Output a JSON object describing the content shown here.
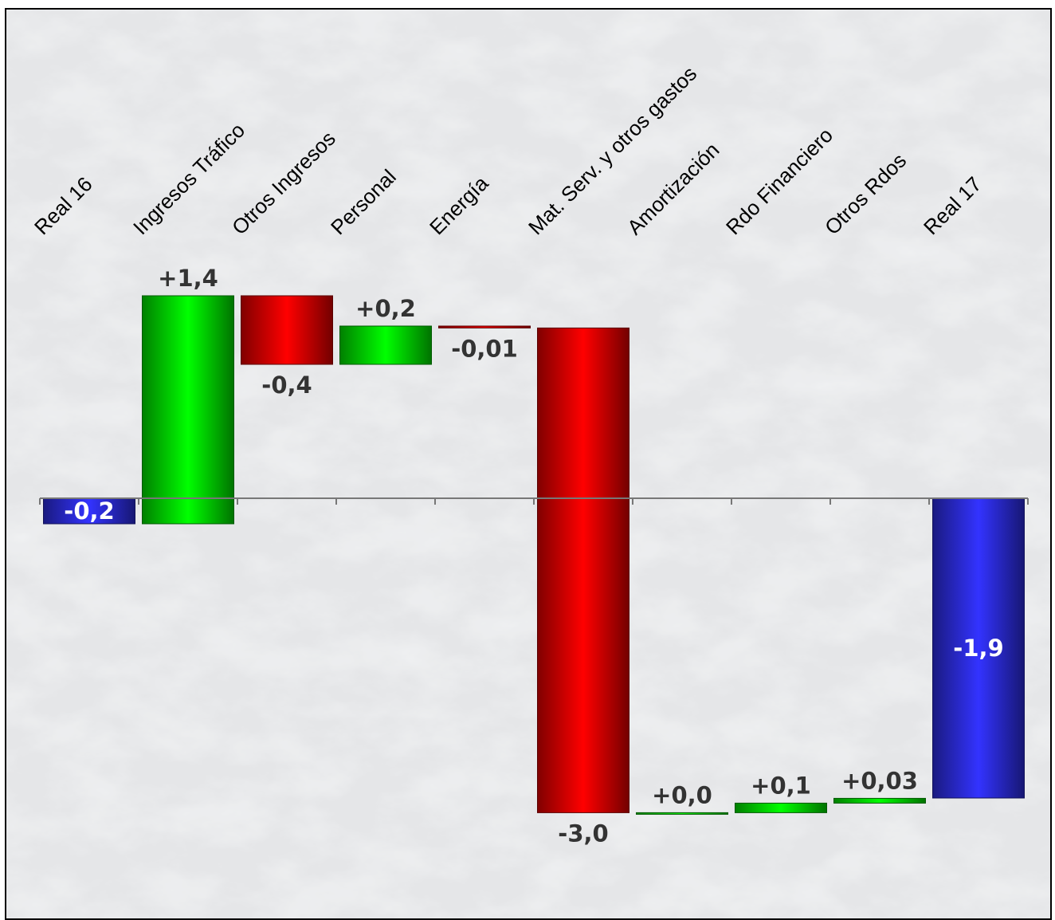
{
  "chart_data": {
    "type": "waterfall",
    "categories": [
      "Real 16",
      "Ingresos Tráfico",
      "Otros Ingresos",
      "Personal",
      "Energía",
      "Mat. Serv. y otros gastos",
      "Amortización",
      "Rdo Financiero",
      "Otros Rdos",
      "Real 17"
    ],
    "values": [
      -0.16,
      1.43,
      -0.43,
      0.24,
      -0.012,
      -3.04,
      0.0,
      0.06,
      0.03,
      -1.88
    ],
    "value_labels": [
      "-0,2",
      "+1,4",
      "-0,4",
      "+0,2",
      "-0,01",
      "-3,0",
      "+0,0",
      "+0,1",
      "+0,03",
      "-1,9"
    ],
    "total_categories": [
      "Real 16",
      "Real 17"
    ],
    "colors": {
      "increase": "#00ff00",
      "decrease": "#ff0000",
      "total": "#3333ff"
    },
    "ylim": [
      -2.4,
      1.6
    ]
  }
}
